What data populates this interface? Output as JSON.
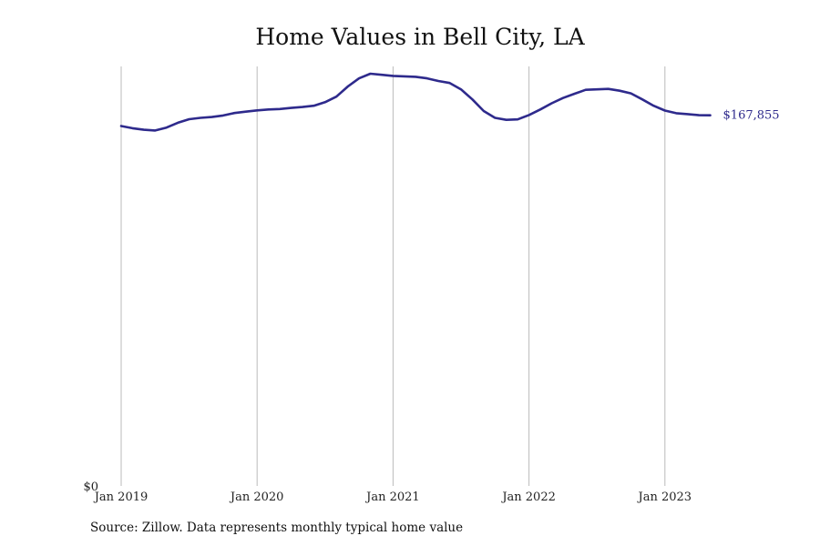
{
  "chart_data": {
    "type": "line",
    "title": "Home Values in Bell City, LA",
    "xlabel": "",
    "ylabel": "",
    "x_tick_labels": [
      "Jan 2019",
      "Jan 2020",
      "Jan 2021",
      "Jan 2022",
      "Jan 2023"
    ],
    "y_tick_labels": [
      "$0"
    ],
    "ylim": [
      0,
      190000
    ],
    "grid": "vertical",
    "line_color": "#2e2a8c",
    "end_label": "$167,855",
    "series": [
      {
        "x": [
          "2019-01",
          "2019-02",
          "2019-03",
          "2019-04",
          "2019-05",
          "2019-06",
          "2019-07",
          "2019-08",
          "2019-09",
          "2019-10",
          "2019-11",
          "2019-12",
          "2020-01",
          "2020-02",
          "2020-03",
          "2020-04",
          "2020-05",
          "2020-06",
          "2020-07",
          "2020-08",
          "2020-09",
          "2020-10",
          "2020-11",
          "2020-12",
          "2021-01",
          "2021-02",
          "2021-03",
          "2021-04",
          "2021-05",
          "2021-06",
          "2021-07",
          "2021-08",
          "2021-09",
          "2021-10",
          "2021-11",
          "2021-12",
          "2022-01",
          "2022-02",
          "2022-03",
          "2022-04",
          "2022-05",
          "2022-06",
          "2022-07",
          "2022-08",
          "2022-09",
          "2022-10",
          "2022-11",
          "2022-12",
          "2023-01",
          "2023-02",
          "2023-03",
          "2023-04",
          "2023-05"
        ],
        "y": [
          163000,
          162000,
          161300,
          161000,
          162300,
          164500,
          166100,
          166700,
          167100,
          167800,
          168900,
          169500,
          170100,
          170500,
          170700,
          171200,
          171600,
          172200,
          173800,
          176300,
          180900,
          184600,
          186700,
          186200,
          185700,
          185500,
          185300,
          184600,
          183400,
          182500,
          179600,
          175100,
          169800,
          166700,
          165800,
          166000,
          168000,
          170500,
          173300,
          175700,
          177600,
          179400,
          179600,
          179800,
          179000,
          177800,
          175100,
          172200,
          170000,
          168800,
          168400,
          167900,
          167855
        ]
      }
    ]
  },
  "footer": {
    "source": "Source: Zillow. Data represents monthly typical home value"
  }
}
